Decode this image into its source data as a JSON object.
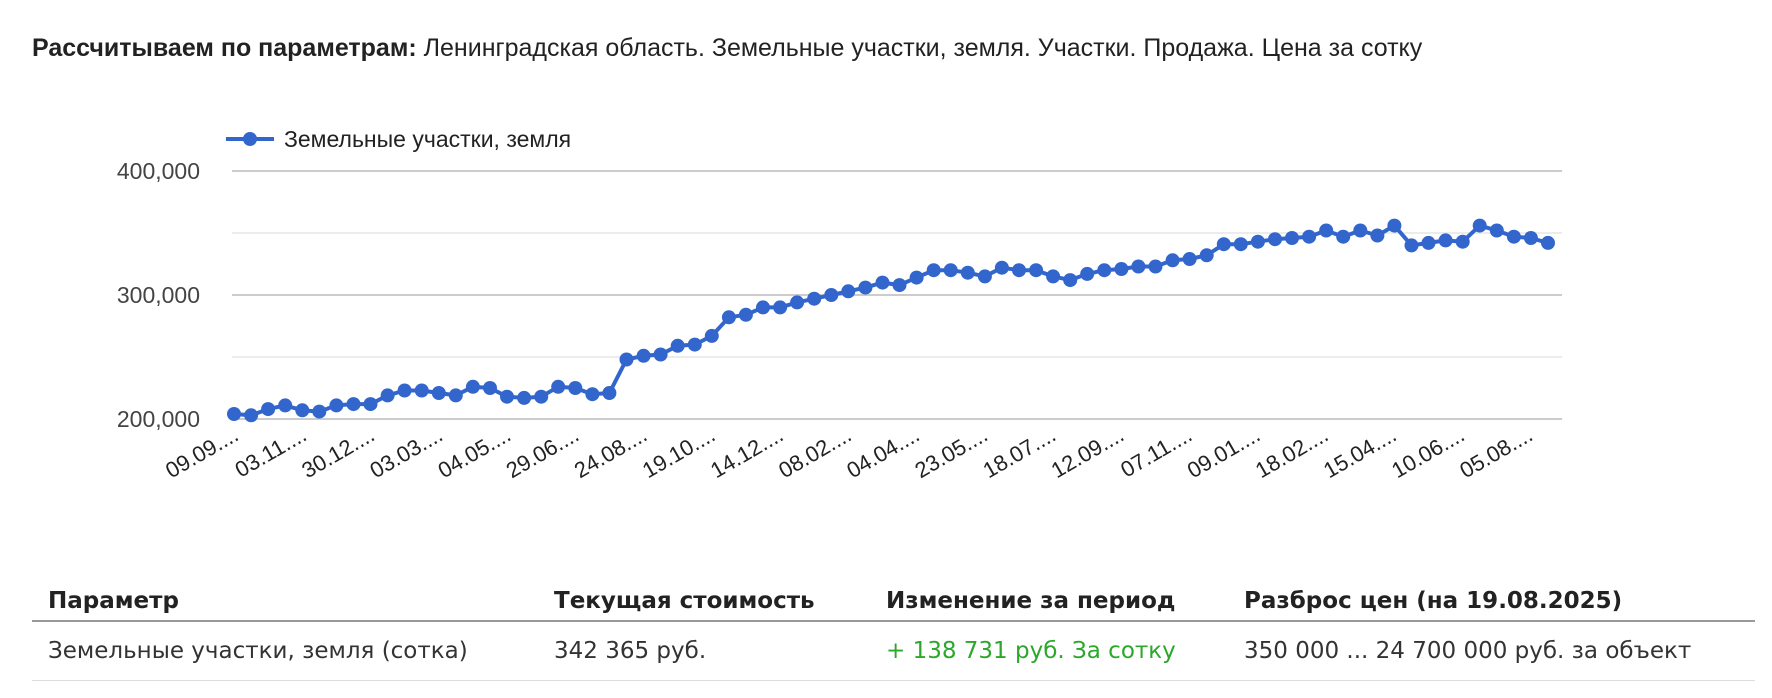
{
  "params": {
    "label": "Рассчитываем по параметрам:",
    "value": "Ленинградская область. Земельные участки, земля. Участки. Продажа. Цена за сотку"
  },
  "chart_data": {
    "type": "line",
    "legend": {
      "position": "top-left",
      "entries": [
        "Земельные участки, земля"
      ]
    },
    "series": [
      {
        "name": "Земельные участки, земля",
        "color": "#3366cc",
        "values": [
          204000,
          203000,
          208000,
          211000,
          207000,
          206000,
          211000,
          212000,
          212000,
          219000,
          223000,
          223000,
          221000,
          219000,
          226000,
          225000,
          218000,
          217000,
          218000,
          226000,
          225000,
          220000,
          221000,
          248000,
          251000,
          252000,
          259000,
          260000,
          267000,
          282000,
          284000,
          290000,
          290000,
          294000,
          297000,
          300000,
          303000,
          306000,
          310000,
          308000,
          314000,
          320000,
          320000,
          318000,
          315000,
          322000,
          320000,
          320000,
          315000,
          312000,
          317000,
          320000,
          321000,
          323000,
          323000,
          328000,
          329000,
          332000,
          341000,
          341000,
          343000,
          345000,
          346000,
          347000,
          352000,
          347000,
          352000,
          348000,
          356000,
          340000,
          342000,
          344000,
          343000,
          356000,
          352000,
          347000,
          346000,
          342000
        ]
      }
    ],
    "x_tick_labels": [
      "09.09....",
      "03.11....",
      "30.12....",
      "03.03....",
      "04.05....",
      "29.06....",
      "24.08....",
      "19.10....",
      "14.12....",
      "08.02....",
      "04.04....",
      "23.05....",
      "18.07....",
      "12.09....",
      "07.11....",
      "09.01....",
      "18.02....",
      "15.04....",
      "10.06....",
      "05.08...."
    ],
    "y_ticks": [
      "200,000",
      "300,000",
      "400,000"
    ],
    "y_tick_values": [
      200000,
      300000,
      400000
    ],
    "ylim": [
      200000,
      400000
    ],
    "grid": true
  },
  "table": {
    "headers": [
      "Параметр",
      "Текущая стоимость",
      "Изменение за период",
      "Разброс цен (на 19.08.2025)"
    ],
    "row": {
      "param": "Земельные участки, земля (сотка)",
      "current": "342 365 руб.",
      "change": "+ 138 731 руб. За сотку",
      "range": "350 000 ... 24 700 000 руб. за объект"
    }
  }
}
